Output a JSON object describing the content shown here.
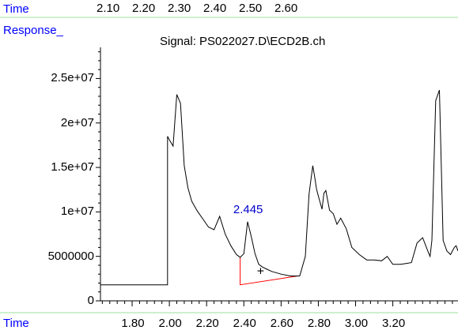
{
  "header": {
    "top_axis_label": "Time",
    "top_axis_ticks": [
      "2.10",
      "2.20",
      "2.30",
      "2.40",
      "2.50",
      "2.60"
    ],
    "response_label": "Response_",
    "signal_title": "Signal: PS022027.D\\ECD2B.ch",
    "bottom_axis_label": "Time"
  },
  "colors": {
    "label_blue": "#0000ff",
    "divider_green": "#9be29b",
    "trace": "#000000",
    "baseline": "#ff0000",
    "peak_label": "#0000cc"
  },
  "chart_data": {
    "type": "line",
    "title": "Signal: PS022027.D\\ECD2B.ch",
    "xlabel": "Time",
    "ylabel": "Response_",
    "xlim": [
      1.63,
      3.55
    ],
    "ylim": [
      0,
      28500000
    ],
    "x_ticks": [
      "1.80",
      "2.00",
      "2.20",
      "2.40",
      "2.60",
      "2.80",
      "3.00",
      "3.20"
    ],
    "y_ticks": [
      "0",
      "5000000",
      "1e+07",
      "1.5e+07",
      "2e+07",
      "2.5e+07"
    ],
    "grid": false,
    "series": [
      {
        "x": [
          1.63,
          1.99,
          1.99,
          2.0,
          2.02,
          2.04,
          2.06,
          2.08,
          2.1,
          2.12,
          2.15,
          2.18,
          2.21,
          2.24,
          2.27,
          2.3,
          2.33,
          2.36,
          2.38,
          2.4,
          2.42,
          2.44,
          2.46,
          2.48,
          2.5,
          2.52,
          2.55,
          2.6,
          2.65,
          2.7,
          2.73,
          2.75,
          2.77,
          2.78,
          2.79,
          2.8,
          2.82,
          2.83,
          2.84,
          2.86,
          2.88,
          2.9,
          2.92,
          2.95,
          2.98,
          3.02,
          3.06,
          3.1,
          3.14,
          3.17,
          3.2,
          3.24,
          3.27,
          3.3,
          3.33,
          3.36,
          3.39,
          3.4,
          3.41,
          3.43,
          3.45,
          3.47,
          3.49,
          3.51,
          3.53,
          3.54,
          3.55
        ],
        "y": [
          1800000,
          1800000,
          18500000,
          18100000,
          17400000,
          23200000,
          22200000,
          15200000,
          12700000,
          11200000,
          10100000,
          9200000,
          8300000,
          8000000,
          9500000,
          7500000,
          6200000,
          5200000,
          4900000,
          5300000,
          8900000,
          7200000,
          5300000,
          4100000,
          3800000,
          3600000,
          3300000,
          3000000,
          2800000,
          2800000,
          5000000,
          12000000,
          15200000,
          14000000,
          12600000,
          11800000,
          10300000,
          12100000,
          12400000,
          10200000,
          9800000,
          8600000,
          9300000,
          8100000,
          6000000,
          5200000,
          4600000,
          4600000,
          4500000,
          5000000,
          4100000,
          4100000,
          4200000,
          4300000,
          6500000,
          7100000,
          5500000,
          5000000,
          6800000,
          22500000,
          23700000,
          6800000,
          5600000,
          5200000,
          6000000,
          6200000,
          5600000
        ]
      }
    ],
    "peak_label": "2.445",
    "peak_marker": "+",
    "baseline_segment": {
      "x": [
        2.38,
        2.69
      ],
      "y": [
        1800000,
        2800000
      ]
    }
  }
}
